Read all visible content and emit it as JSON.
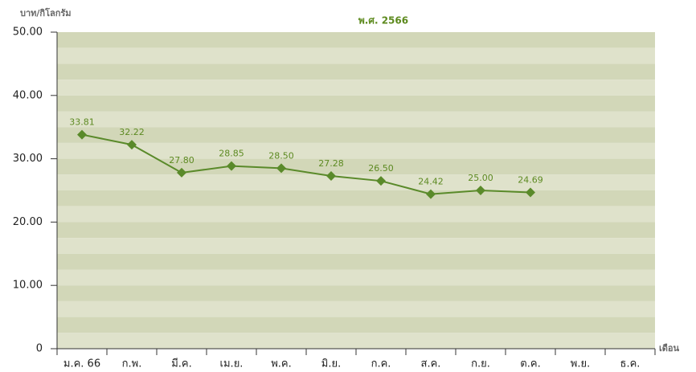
{
  "chart_data": {
    "type": "line",
    "title": "พ.ศ. 2566",
    "y_label": "บาท/กิโลกรัม",
    "x_label": "เดือน",
    "categories": [
      "ม.ค. 66",
      "ก.พ.",
      "มี.ค.",
      "เม.ย.",
      "พ.ค.",
      "มิ.ย.",
      "ก.ค.",
      "ส.ค.",
      "ก.ย.",
      "ต.ค.",
      "พ.ย.",
      "ธ.ค."
    ],
    "values": [
      33.81,
      32.22,
      27.8,
      28.85,
      28.5,
      27.28,
      26.5,
      24.42,
      25.0,
      24.69,
      null,
      null
    ],
    "value_labels": [
      "33.81",
      "32.22",
      "27.80",
      "28.85",
      "28.50",
      "27.28",
      "26.50",
      "24.42",
      "25.00",
      "24.69",
      null,
      null
    ],
    "color": "#5a8a2a",
    "ylim": [
      0,
      50
    ],
    "yticks": [
      0,
      {
        "value": 10,
        "label": "10.00"
      },
      {
        "value": 20,
        "label": "20.00"
      },
      {
        "value": 30,
        "label": "30.00"
      },
      {
        "value": 40,
        "label": "40.00"
      },
      {
        "value": 50,
        "label": "50.00"
      }
    ]
  }
}
